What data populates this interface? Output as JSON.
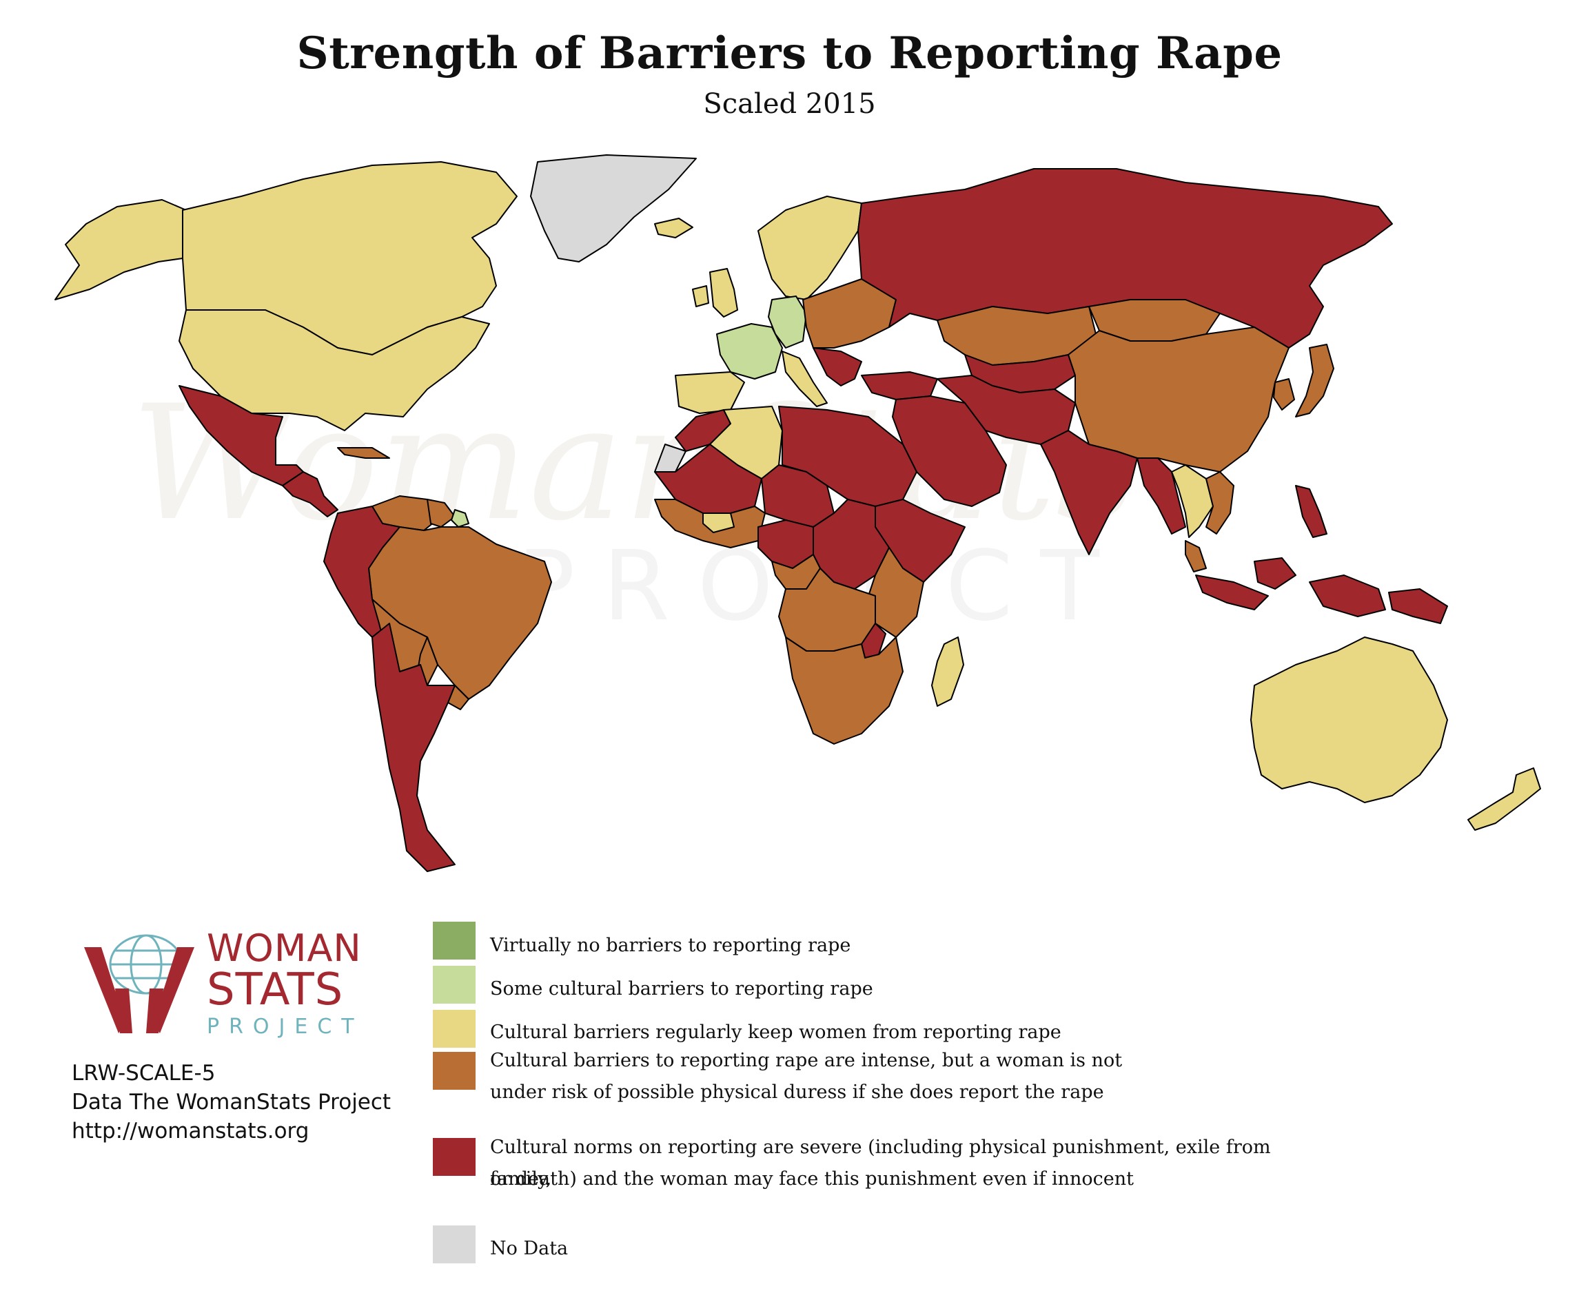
{
  "title": "Strength of Barriers to Reporting Rape",
  "subtitle": "Scaled 2015",
  "colors": {
    "level1": "#8aad63",
    "level2": "#c5dc9a",
    "level3": "#e8d883",
    "level4": "#b96e33",
    "level5": "#a0282d",
    "no_data": "#d9d9d9",
    "background": "#ffffff"
  },
  "legend": [
    {
      "color": "#8aad63",
      "label": "Virtually no barriers to reporting rape"
    },
    {
      "color": "#c5dc9a",
      "label": "Some cultural barriers to reporting rape"
    },
    {
      "color": "#e8d883",
      "label": "Cultural barriers regularly keep women from reporting rape"
    },
    {
      "color": "#b96e33",
      "label": "Cultural barriers to reporting rape are intense, but a woman is not",
      "label2": "under risk of possible physical duress if she does report the rape"
    },
    {
      "color": "#a0282d",
      "label": "Cultural norms on reporting are severe (including physical punishment, exile from family,",
      "label2": "or death) and the woman may face this punishment even if innocent"
    },
    {
      "color": "#d9d9d9",
      "label": "No Data"
    }
  ],
  "logo": {
    "word1": "WOMAN",
    "word2": "STATS",
    "word3": "PROJECT"
  },
  "watermark": {
    "script": "WomanStats",
    "project": "PROJECT"
  },
  "credits": {
    "scale_code": "LRW-SCALE-5",
    "source": "Data The WomanStats Project",
    "url": "http://womanstats.org"
  },
  "regions": [
    {
      "name": "Canada",
      "level": "level3"
    },
    {
      "name": "United States",
      "level": "level3"
    },
    {
      "name": "Alaska",
      "level": "level3"
    },
    {
      "name": "Greenland",
      "level": "no_data"
    },
    {
      "name": "Iceland",
      "level": "level3"
    },
    {
      "name": "Mexico",
      "level": "level5"
    },
    {
      "name": "Central America",
      "level": "level5"
    },
    {
      "name": "Cuba",
      "level": "level4"
    },
    {
      "name": "Colombia / Ecuador / Peru",
      "level": "level5"
    },
    {
      "name": "Venezuela",
      "level": "level4"
    },
    {
      "name": "Guyana / Suriname",
      "level": "level4"
    },
    {
      "name": "French Guiana",
      "level": "level2"
    },
    {
      "name": "Brazil",
      "level": "level4"
    },
    {
      "name": "Bolivia",
      "level": "level4"
    },
    {
      "name": "Paraguay",
      "level": "level4"
    },
    {
      "name": "Uruguay",
      "level": "level4"
    },
    {
      "name": "Chile / Argentina",
      "level": "level5"
    },
    {
      "name": "Scandinavia",
      "level": "level3"
    },
    {
      "name": "United Kingdom",
      "level": "level3"
    },
    {
      "name": "Ireland",
      "level": "level3"
    },
    {
      "name": "France",
      "level": "level2"
    },
    {
      "name": "Germany",
      "level": "level2"
    },
    {
      "name": "Spain / Portugal",
      "level": "level3"
    },
    {
      "name": "Italy",
      "level": "level3"
    },
    {
      "name": "Eastern Europe",
      "level": "level4"
    },
    {
      "name": "Balkans",
      "level": "level5"
    },
    {
      "name": "Russia",
      "level": "level5"
    },
    {
      "name": "Kazakhstan",
      "level": "level4"
    },
    {
      "name": "Central Asia",
      "level": "level5"
    },
    {
      "name": "Turkey",
      "level": "level5"
    },
    {
      "name": "Middle East",
      "level": "level5"
    },
    {
      "name": "Iran / Afghanistan / Pakistan",
      "level": "level5"
    },
    {
      "name": "India",
      "level": "level5"
    },
    {
      "name": "Mongolia",
      "level": "level4"
    },
    {
      "name": "China",
      "level": "level4"
    },
    {
      "name": "Korea",
      "level": "level4"
    },
    {
      "name": "Japan",
      "level": "level4"
    },
    {
      "name": "Myanmar / Bangladesh",
      "level": "level5"
    },
    {
      "name": "Thailand / Laos",
      "level": "level3"
    },
    {
      "name": "Vietnam / Cambodia",
      "level": "level4"
    },
    {
      "name": "Malaysia",
      "level": "level4"
    },
    {
      "name": "Indonesia",
      "level": "level5"
    },
    {
      "name": "Philippines",
      "level": "level5"
    },
    {
      "name": "Papua New Guinea",
      "level": "level5"
    },
    {
      "name": "Australia",
      "level": "level3"
    },
    {
      "name": "New Zealand",
      "level": "level3"
    },
    {
      "name": "Morocco",
      "level": "level5"
    },
    {
      "name": "Western Sahara",
      "level": "no_data"
    },
    {
      "name": "Algeria",
      "level": "level3"
    },
    {
      "name": "Libya / Egypt / Sudan",
      "level": "level5"
    },
    {
      "name": "Mauritania / Mali",
      "level": "level5"
    },
    {
      "name": "Niger / Chad",
      "level": "level5"
    },
    {
      "name": "West Africa coast",
      "level": "level4"
    },
    {
      "name": "Burkina Faso",
      "level": "level3"
    },
    {
      "name": "Nigeria / Cameroon",
      "level": "level5"
    },
    {
      "name": "Ethiopia / Somalia",
      "level": "level5"
    },
    {
      "name": "Central Africa",
      "level": "level5"
    },
    {
      "name": "Gabon / Congo",
      "level": "level4"
    },
    {
      "name": "Kenya / Tanzania",
      "level": "level4"
    },
    {
      "name": "Angola / Zambia",
      "level": "level4"
    },
    {
      "name": "Southern Africa",
      "level": "level4"
    },
    {
      "name": "Zimbabwe",
      "level": "level5"
    },
    {
      "name": "Madagascar",
      "level": "level3"
    }
  ]
}
